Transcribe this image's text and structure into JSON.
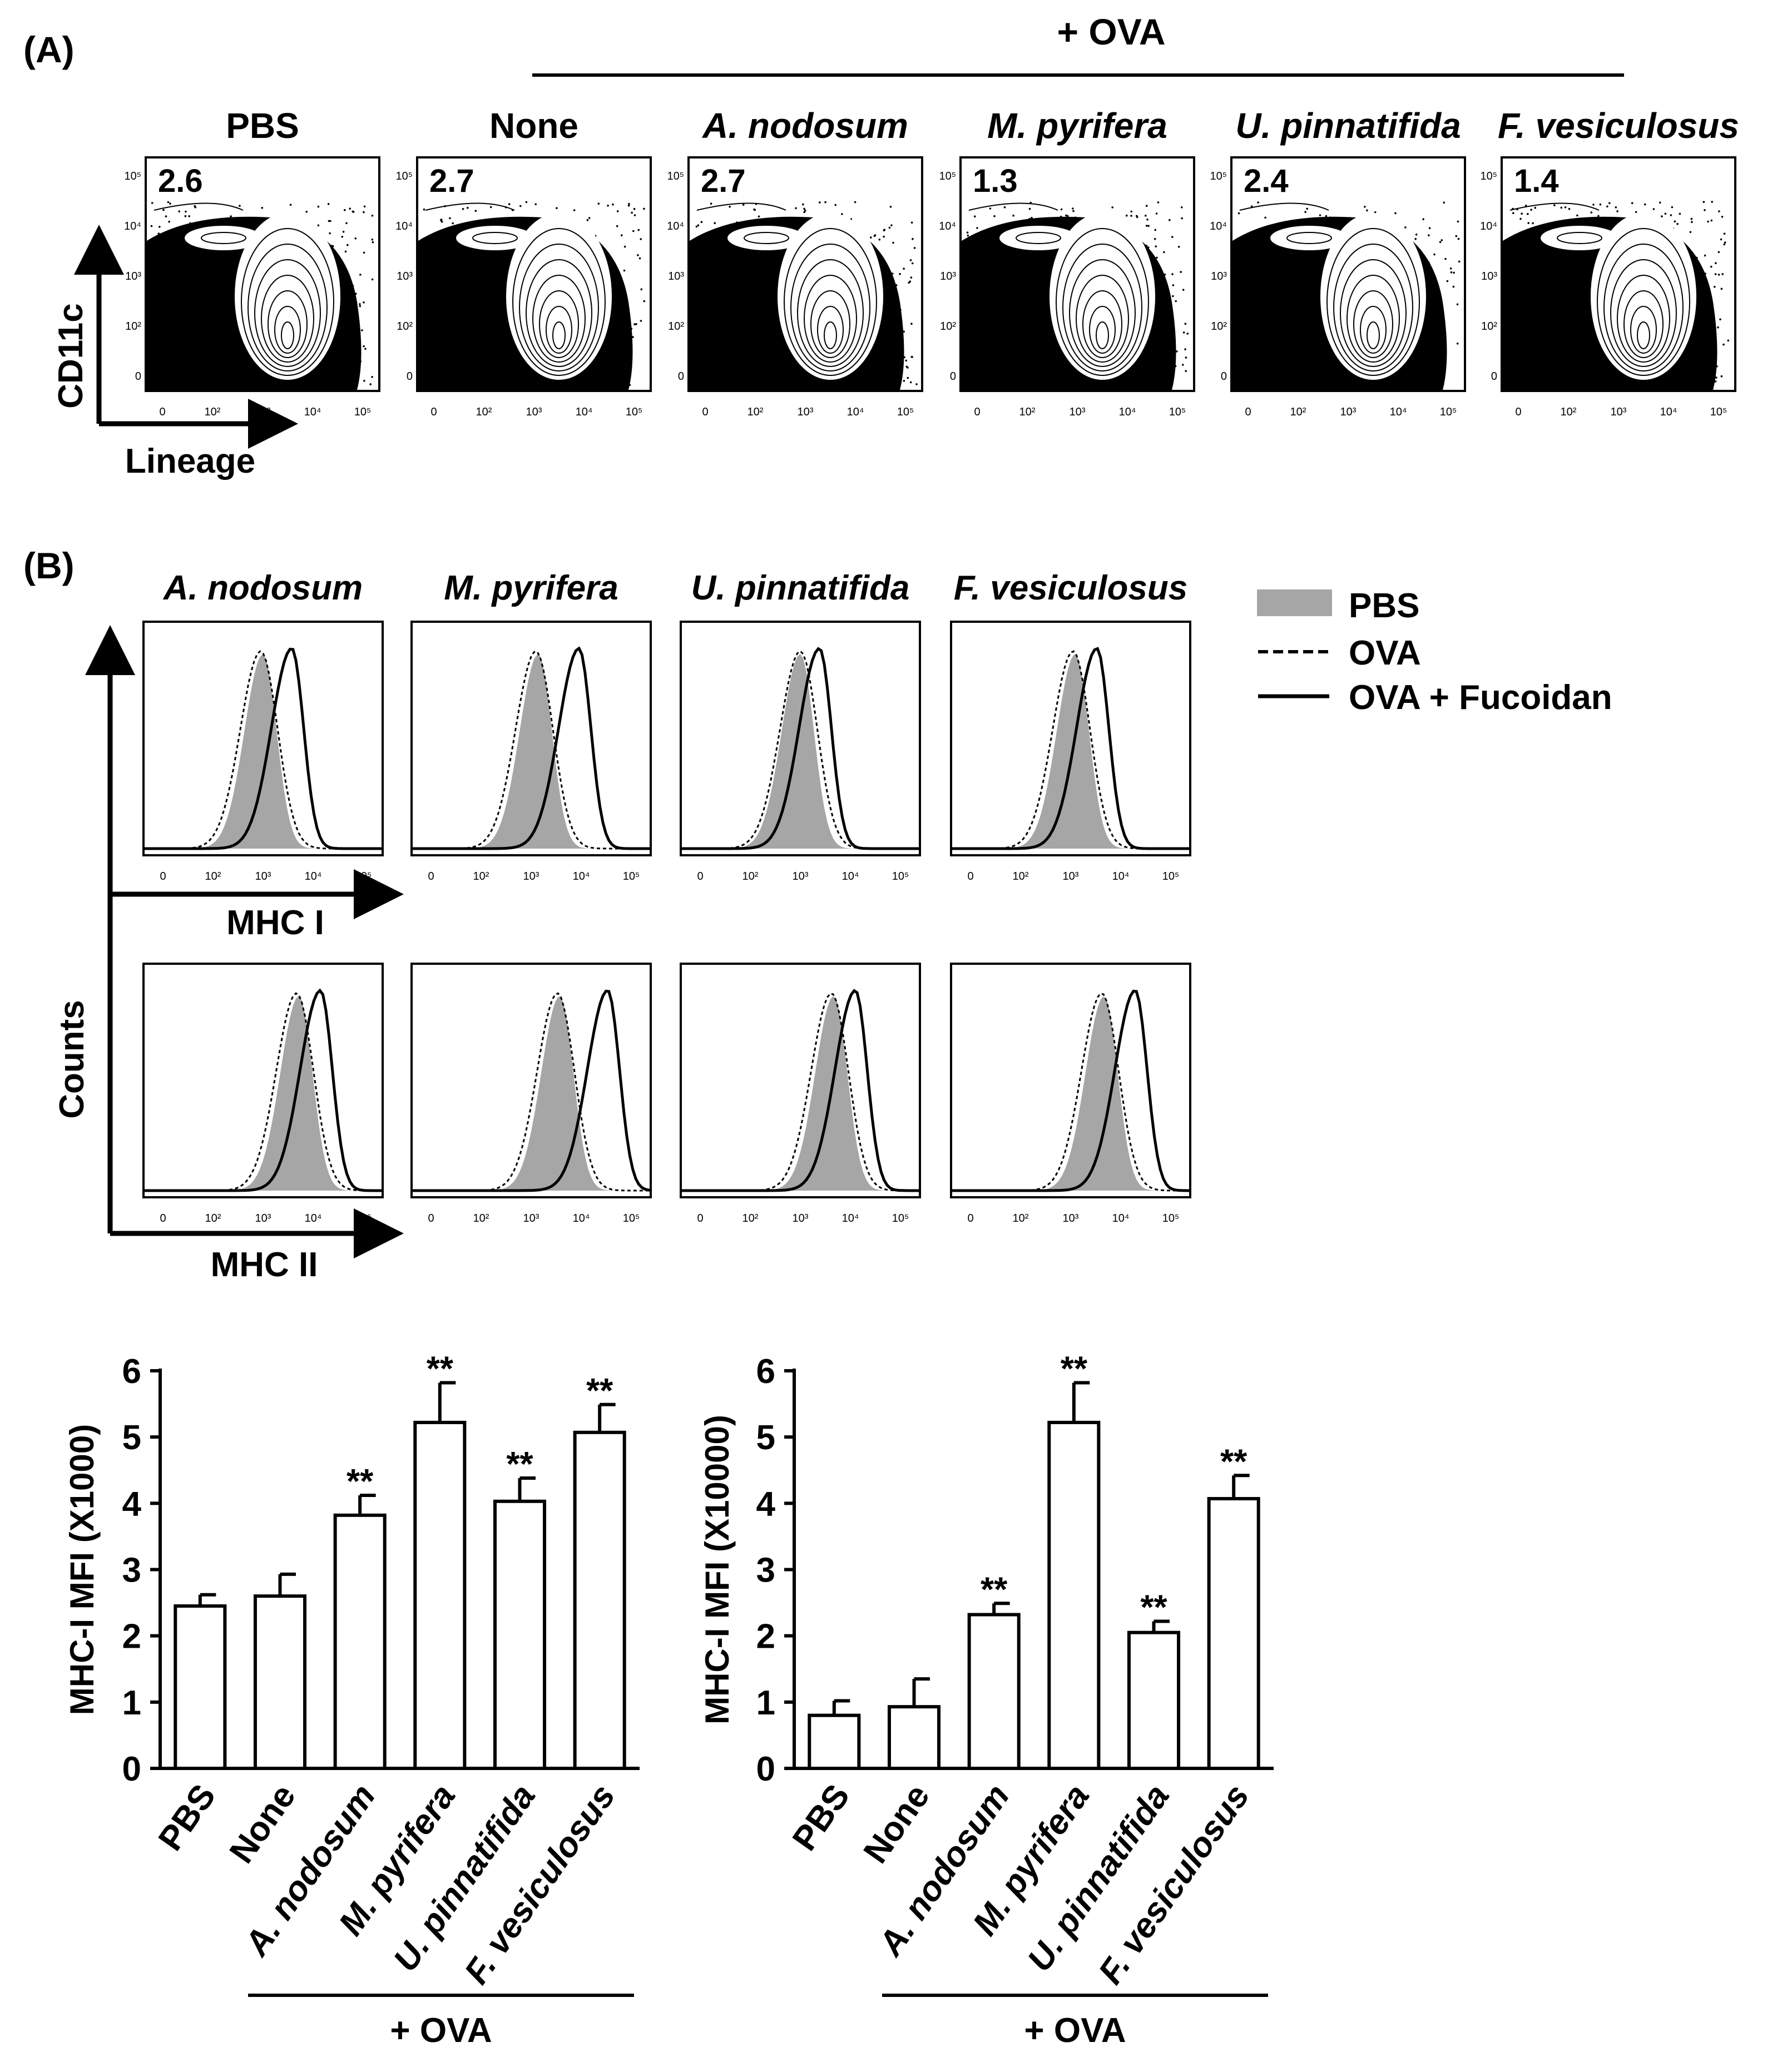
{
  "panelA": {
    "label": "(A)",
    "ova_label": "+ OVA",
    "y_label": "CD11c",
    "x_label": "Lineage",
    "panels": [
      {
        "title": "PBS",
        "value": "2.6"
      },
      {
        "title": "None",
        "value": "2.7"
      },
      {
        "title": "A. nodosum",
        "value": "2.7"
      },
      {
        "title": "M. pyrifera",
        "value": "1.3"
      },
      {
        "title": "U. pinnatifida",
        "value": "2.4"
      },
      {
        "title": "F. vesiculosus",
        "value": "1.4"
      }
    ],
    "y_ticks": [
      "10⁵",
      "10⁴",
      "10³",
      "10²",
      "0"
    ],
    "x_ticks": [
      "0",
      "10²",
      "10³",
      "10⁴",
      "10⁵"
    ]
  },
  "panelB": {
    "label": "(B)",
    "columns": [
      "A. nodosum",
      "M. pyrifera",
      "U. pinnatifida",
      "F. vesiculosus"
    ],
    "row_labels": [
      "MHC I",
      "MHC II"
    ],
    "y_label": "Counts",
    "x_ticks": [
      "0",
      "10²",
      "10³",
      "10⁴",
      "10⁵"
    ],
    "legend": [
      {
        "label": "PBS",
        "style": "filled-gray"
      },
      {
        "label": "OVA",
        "style": "dashed"
      },
      {
        "label": "OVA + Fucoidan",
        "style": "solid"
      }
    ]
  },
  "chart_data": [
    {
      "type": "bar",
      "categories": [
        "PBS",
        "None",
        "A. nodosum",
        "M. pyrifera",
        "U. pinnatifida",
        "F. vesiculosus"
      ],
      "values": [
        2.45,
        2.6,
        3.82,
        5.22,
        4.03,
        5.07
      ],
      "errors": [
        0.17,
        0.33,
        0.3,
        0.6,
        0.35,
        0.42
      ],
      "significance": [
        "",
        "",
        "**",
        "**",
        "**",
        "**"
      ],
      "ylabel": "MHC-I MFI (X1000)",
      "ylim": [
        0,
        6
      ],
      "yticks": [
        "0",
        "1",
        "2",
        "3",
        "4",
        "5",
        "6"
      ],
      "group_label": "+ OVA"
    },
    {
      "type": "bar",
      "categories": [
        "PBS",
        "None",
        "A. nodosum",
        "M. pyrifera",
        "U. pinnatifida",
        "F. vesiculosus"
      ],
      "values": [
        0.8,
        0.93,
        2.32,
        5.22,
        2.05,
        4.07
      ],
      "errors": [
        0.22,
        0.42,
        0.17,
        0.6,
        0.17,
        0.35
      ],
      "significance": [
        "",
        "",
        "**",
        "**",
        "**",
        "**"
      ],
      "ylabel": "MHC-I MFI (X10000)",
      "ylim": [
        0,
        6
      ],
      "yticks": [
        "0",
        "1",
        "2",
        "3",
        "4",
        "5",
        "6"
      ],
      "group_label": "+ OVA"
    }
  ]
}
